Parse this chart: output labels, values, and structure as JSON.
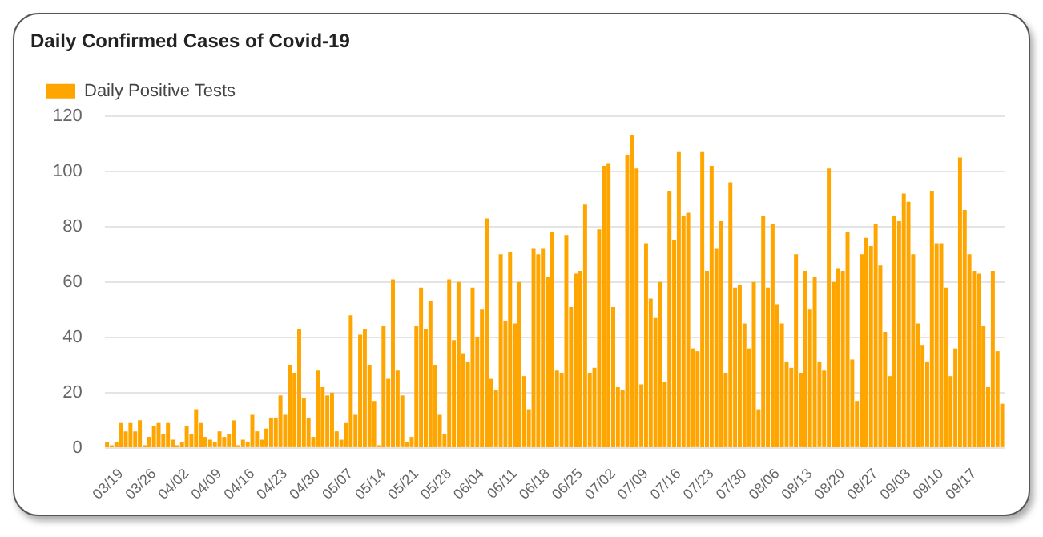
{
  "chart_data": {
    "type": "bar",
    "title": "Daily Confirmed Cases of Covid-19",
    "categories": [
      null,
      null,
      null,
      "03/19",
      null,
      null,
      null,
      null,
      null,
      null,
      "03/26",
      null,
      null,
      null,
      null,
      null,
      null,
      "04/02",
      null,
      null,
      null,
      null,
      null,
      null,
      "04/09",
      null,
      null,
      null,
      null,
      null,
      null,
      "04/16",
      null,
      null,
      null,
      null,
      null,
      null,
      "04/23",
      null,
      null,
      null,
      null,
      null,
      null,
      "04/30",
      null,
      null,
      null,
      null,
      null,
      null,
      "05/07",
      null,
      null,
      null,
      null,
      null,
      null,
      "05/14",
      null,
      null,
      null,
      null,
      null,
      null,
      "05/21",
      null,
      null,
      null,
      null,
      null,
      null,
      "05/28",
      null,
      null,
      null,
      null,
      null,
      null,
      "06/04",
      null,
      null,
      null,
      null,
      null,
      null,
      "06/11",
      null,
      null,
      null,
      null,
      null,
      null,
      "06/18",
      null,
      null,
      null,
      null,
      null,
      null,
      "06/25",
      null,
      null,
      null,
      null,
      null,
      null,
      "07/02",
      null,
      null,
      null,
      null,
      null,
      null,
      "07/09",
      null,
      null,
      null,
      null,
      null,
      null,
      "07/16",
      null,
      null,
      null,
      null,
      null,
      null,
      "07/23",
      null,
      null,
      null,
      null,
      null,
      null,
      "07/30",
      null,
      null,
      null,
      null,
      null,
      null,
      "08/06",
      null,
      null,
      null,
      null,
      null,
      null,
      "08/13",
      null,
      null,
      null,
      null,
      null,
      null,
      "08/20",
      null,
      null,
      null,
      null,
      null,
      null,
      "08/27",
      null,
      null,
      null,
      null,
      null,
      null,
      "09/03",
      null,
      null,
      null,
      null,
      null,
      null,
      "09/10",
      null,
      null,
      null,
      null,
      null,
      null,
      "09/17",
      null,
      null,
      null,
      null,
      null,
      null
    ],
    "series": [
      {
        "name": "Daily Positive Tests",
        "color": "#ffa500",
        "values": [
          2,
          1,
          2,
          9,
          6,
          9,
          6,
          10,
          1,
          4,
          8,
          9,
          5,
          9,
          3,
          1,
          2,
          8,
          5,
          14,
          9,
          4,
          3,
          2,
          6,
          4,
          5,
          10,
          1,
          3,
          2,
          12,
          6,
          3,
          7,
          11,
          11,
          19,
          12,
          30,
          27,
          43,
          18,
          11,
          4,
          28,
          22,
          19,
          20,
          6,
          3,
          9,
          48,
          12,
          41,
          43,
          30,
          17,
          1,
          44,
          25,
          61,
          28,
          19,
          2,
          4,
          44,
          58,
          43,
          53,
          30,
          12,
          5,
          61,
          39,
          60,
          34,
          31,
          58,
          40,
          50,
          83,
          25,
          21,
          70,
          46,
          71,
          45,
          60,
          26,
          14,
          72,
          70,
          72,
          62,
          78,
          28,
          27,
          77,
          51,
          63,
          64,
          88,
          27,
          29,
          79,
          102,
          103,
          51,
          22,
          21,
          106,
          113,
          101,
          23,
          74,
          54,
          47,
          60,
          24,
          93,
          75,
          107,
          84,
          85,
          36,
          35,
          107,
          64,
          102,
          72,
          82,
          27,
          96,
          58,
          59,
          45,
          36,
          60,
          14,
          84,
          58,
          81,
          52,
          45,
          31,
          29,
          70,
          27,
          64,
          50,
          62,
          31,
          28,
          101,
          60,
          65,
          64,
          78,
          32,
          17,
          70,
          76,
          73,
          81,
          66,
          42,
          26,
          84,
          82,
          92,
          89,
          70,
          45,
          37,
          31,
          93,
          74,
          74,
          58,
          26,
          36,
          105,
          86,
          70,
          64,
          63,
          44,
          22,
          64,
          35,
          16
        ]
      }
    ],
    "ylim": [
      0,
      120
    ],
    "yticks": [
      0,
      20,
      40,
      60,
      80,
      100,
      120
    ],
    "grid": "y",
    "legend": "top left"
  }
}
